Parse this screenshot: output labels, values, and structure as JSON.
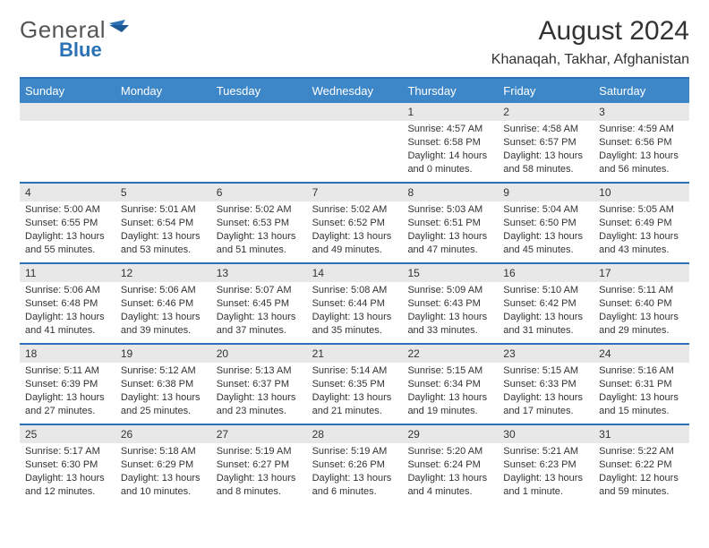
{
  "brand": {
    "part1": "General",
    "part2": "Blue"
  },
  "colors": {
    "header_bg": "#3d87c9",
    "row_border": "#2a72b5",
    "daynum_bg": "#e8e8e8",
    "text": "#333333",
    "brand_blue": "#2a72b5",
    "brand_gray": "#555555",
    "background": "#ffffff"
  },
  "typography": {
    "title_fontsize": 30,
    "subtitle_fontsize": 16,
    "header_fontsize": 13,
    "daynum_fontsize": 12,
    "body_fontsize": 11
  },
  "title": "August 2024",
  "subtitle": "Khanaqah, Takhar, Afghanistan",
  "day_headers": [
    "Sunday",
    "Monday",
    "Tuesday",
    "Wednesday",
    "Thursday",
    "Friday",
    "Saturday"
  ],
  "weeks": [
    [
      {
        "empty": true
      },
      {
        "empty": true
      },
      {
        "empty": true
      },
      {
        "empty": true
      },
      {
        "num": "1",
        "sunrise": "Sunrise: 4:57 AM",
        "sunset": "Sunset: 6:58 PM",
        "daylight1": "Daylight: 14 hours",
        "daylight2": "and 0 minutes."
      },
      {
        "num": "2",
        "sunrise": "Sunrise: 4:58 AM",
        "sunset": "Sunset: 6:57 PM",
        "daylight1": "Daylight: 13 hours",
        "daylight2": "and 58 minutes."
      },
      {
        "num": "3",
        "sunrise": "Sunrise: 4:59 AM",
        "sunset": "Sunset: 6:56 PM",
        "daylight1": "Daylight: 13 hours",
        "daylight2": "and 56 minutes."
      }
    ],
    [
      {
        "num": "4",
        "sunrise": "Sunrise: 5:00 AM",
        "sunset": "Sunset: 6:55 PM",
        "daylight1": "Daylight: 13 hours",
        "daylight2": "and 55 minutes."
      },
      {
        "num": "5",
        "sunrise": "Sunrise: 5:01 AM",
        "sunset": "Sunset: 6:54 PM",
        "daylight1": "Daylight: 13 hours",
        "daylight2": "and 53 minutes."
      },
      {
        "num": "6",
        "sunrise": "Sunrise: 5:02 AM",
        "sunset": "Sunset: 6:53 PM",
        "daylight1": "Daylight: 13 hours",
        "daylight2": "and 51 minutes."
      },
      {
        "num": "7",
        "sunrise": "Sunrise: 5:02 AM",
        "sunset": "Sunset: 6:52 PM",
        "daylight1": "Daylight: 13 hours",
        "daylight2": "and 49 minutes."
      },
      {
        "num": "8",
        "sunrise": "Sunrise: 5:03 AM",
        "sunset": "Sunset: 6:51 PM",
        "daylight1": "Daylight: 13 hours",
        "daylight2": "and 47 minutes."
      },
      {
        "num": "9",
        "sunrise": "Sunrise: 5:04 AM",
        "sunset": "Sunset: 6:50 PM",
        "daylight1": "Daylight: 13 hours",
        "daylight2": "and 45 minutes."
      },
      {
        "num": "10",
        "sunrise": "Sunrise: 5:05 AM",
        "sunset": "Sunset: 6:49 PM",
        "daylight1": "Daylight: 13 hours",
        "daylight2": "and 43 minutes."
      }
    ],
    [
      {
        "num": "11",
        "sunrise": "Sunrise: 5:06 AM",
        "sunset": "Sunset: 6:48 PM",
        "daylight1": "Daylight: 13 hours",
        "daylight2": "and 41 minutes."
      },
      {
        "num": "12",
        "sunrise": "Sunrise: 5:06 AM",
        "sunset": "Sunset: 6:46 PM",
        "daylight1": "Daylight: 13 hours",
        "daylight2": "and 39 minutes."
      },
      {
        "num": "13",
        "sunrise": "Sunrise: 5:07 AM",
        "sunset": "Sunset: 6:45 PM",
        "daylight1": "Daylight: 13 hours",
        "daylight2": "and 37 minutes."
      },
      {
        "num": "14",
        "sunrise": "Sunrise: 5:08 AM",
        "sunset": "Sunset: 6:44 PM",
        "daylight1": "Daylight: 13 hours",
        "daylight2": "and 35 minutes."
      },
      {
        "num": "15",
        "sunrise": "Sunrise: 5:09 AM",
        "sunset": "Sunset: 6:43 PM",
        "daylight1": "Daylight: 13 hours",
        "daylight2": "and 33 minutes."
      },
      {
        "num": "16",
        "sunrise": "Sunrise: 5:10 AM",
        "sunset": "Sunset: 6:42 PM",
        "daylight1": "Daylight: 13 hours",
        "daylight2": "and 31 minutes."
      },
      {
        "num": "17",
        "sunrise": "Sunrise: 5:11 AM",
        "sunset": "Sunset: 6:40 PM",
        "daylight1": "Daylight: 13 hours",
        "daylight2": "and 29 minutes."
      }
    ],
    [
      {
        "num": "18",
        "sunrise": "Sunrise: 5:11 AM",
        "sunset": "Sunset: 6:39 PM",
        "daylight1": "Daylight: 13 hours",
        "daylight2": "and 27 minutes."
      },
      {
        "num": "19",
        "sunrise": "Sunrise: 5:12 AM",
        "sunset": "Sunset: 6:38 PM",
        "daylight1": "Daylight: 13 hours",
        "daylight2": "and 25 minutes."
      },
      {
        "num": "20",
        "sunrise": "Sunrise: 5:13 AM",
        "sunset": "Sunset: 6:37 PM",
        "daylight1": "Daylight: 13 hours",
        "daylight2": "and 23 minutes."
      },
      {
        "num": "21",
        "sunrise": "Sunrise: 5:14 AM",
        "sunset": "Sunset: 6:35 PM",
        "daylight1": "Daylight: 13 hours",
        "daylight2": "and 21 minutes."
      },
      {
        "num": "22",
        "sunrise": "Sunrise: 5:15 AM",
        "sunset": "Sunset: 6:34 PM",
        "daylight1": "Daylight: 13 hours",
        "daylight2": "and 19 minutes."
      },
      {
        "num": "23",
        "sunrise": "Sunrise: 5:15 AM",
        "sunset": "Sunset: 6:33 PM",
        "daylight1": "Daylight: 13 hours",
        "daylight2": "and 17 minutes."
      },
      {
        "num": "24",
        "sunrise": "Sunrise: 5:16 AM",
        "sunset": "Sunset: 6:31 PM",
        "daylight1": "Daylight: 13 hours",
        "daylight2": "and 15 minutes."
      }
    ],
    [
      {
        "num": "25",
        "sunrise": "Sunrise: 5:17 AM",
        "sunset": "Sunset: 6:30 PM",
        "daylight1": "Daylight: 13 hours",
        "daylight2": "and 12 minutes."
      },
      {
        "num": "26",
        "sunrise": "Sunrise: 5:18 AM",
        "sunset": "Sunset: 6:29 PM",
        "daylight1": "Daylight: 13 hours",
        "daylight2": "and 10 minutes."
      },
      {
        "num": "27",
        "sunrise": "Sunrise: 5:19 AM",
        "sunset": "Sunset: 6:27 PM",
        "daylight1": "Daylight: 13 hours",
        "daylight2": "and 8 minutes."
      },
      {
        "num": "28",
        "sunrise": "Sunrise: 5:19 AM",
        "sunset": "Sunset: 6:26 PM",
        "daylight1": "Daylight: 13 hours",
        "daylight2": "and 6 minutes."
      },
      {
        "num": "29",
        "sunrise": "Sunrise: 5:20 AM",
        "sunset": "Sunset: 6:24 PM",
        "daylight1": "Daylight: 13 hours",
        "daylight2": "and 4 minutes."
      },
      {
        "num": "30",
        "sunrise": "Sunrise: 5:21 AM",
        "sunset": "Sunset: 6:23 PM",
        "daylight1": "Daylight: 13 hours",
        "daylight2": "and 1 minute."
      },
      {
        "num": "31",
        "sunrise": "Sunrise: 5:22 AM",
        "sunset": "Sunset: 6:22 PM",
        "daylight1": "Daylight: 12 hours",
        "daylight2": "and 59 minutes."
      }
    ]
  ]
}
